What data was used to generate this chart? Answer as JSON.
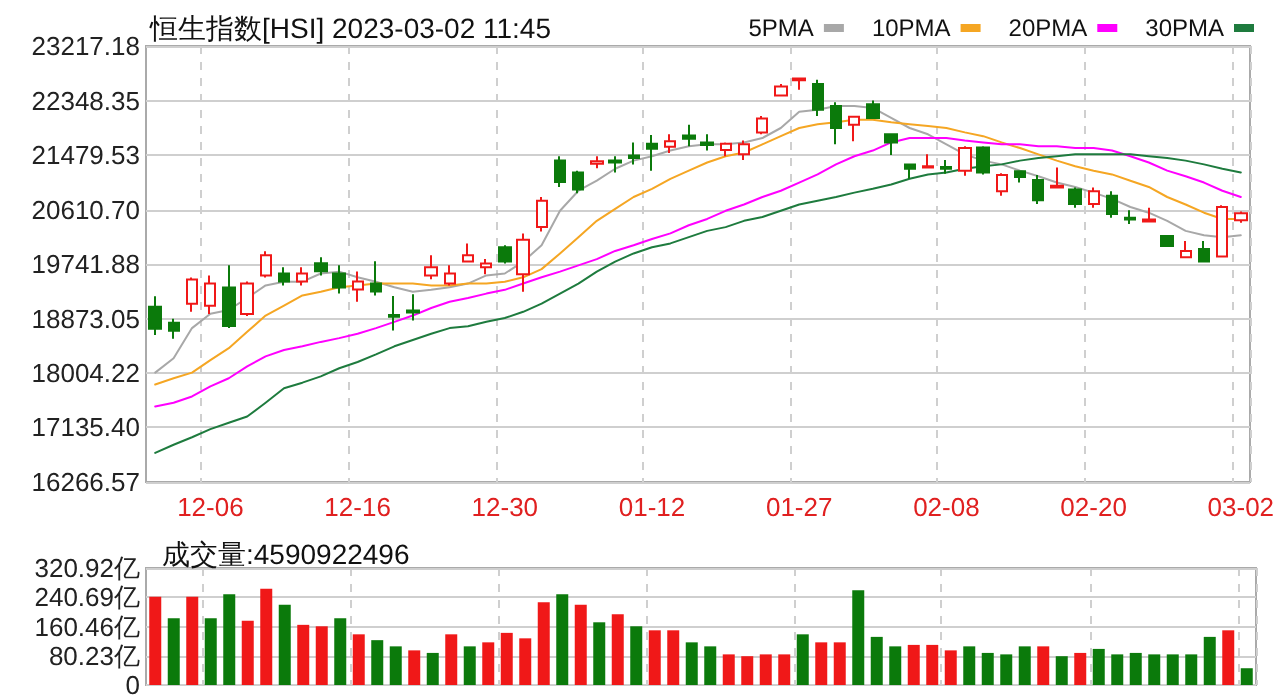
{
  "chart_data": [
    {
      "type": "candlestick",
      "title": "恒生指数[HSI] 2023-03-02 11:45",
      "categories": [
        null,
        null,
        null,
        "12-06",
        null,
        null,
        null,
        null,
        null,
        null,
        null,
        "12-16",
        null,
        null,
        null,
        null,
        null,
        null,
        null,
        "12-30",
        null,
        null,
        null,
        null,
        null,
        null,
        null,
        "01-12",
        null,
        null,
        null,
        null,
        null,
        null,
        null,
        "01-27",
        null,
        null,
        null,
        null,
        null,
        null,
        null,
        "02-08",
        null,
        null,
        null,
        null,
        null,
        null,
        null,
        "02-20",
        null,
        null,
        null,
        null,
        null,
        null,
        null,
        "03-02"
      ],
      "ohlc": [
        [
          19062,
          19228,
          18610,
          18708
        ],
        [
          18805,
          18870,
          18550,
          18676
        ],
        [
          19110,
          19528,
          18980,
          19496
        ],
        [
          19078,
          19560,
          18945,
          19432
        ],
        [
          19367,
          19721,
          18722,
          18755
        ],
        [
          18945,
          19464,
          18913,
          19432
        ],
        [
          19560,
          19946,
          19528,
          19882
        ],
        [
          19592,
          19689,
          19399,
          19464
        ],
        [
          19464,
          19689,
          19399,
          19592
        ],
        [
          19753,
          19850,
          19560,
          19625
        ],
        [
          19592,
          19721,
          19271,
          19367
        ],
        [
          19335,
          19624,
          19142,
          19464
        ],
        [
          19432,
          19785,
          19239,
          19303
        ],
        [
          18930,
          19230,
          18680,
          18900
        ],
        [
          19000,
          19260,
          18840,
          18970
        ],
        [
          19560,
          19880,
          19500,
          19690
        ],
        [
          19430,
          19720,
          19400,
          19590
        ],
        [
          19780,
          20070,
          19780,
          19880
        ],
        [
          19690,
          19820,
          19580,
          19750
        ],
        [
          20010,
          20040,
          19750,
          19780
        ],
        [
          19580,
          20230,
          19300,
          20130
        ],
        [
          20330,
          20810,
          20260,
          20750
        ],
        [
          21390,
          21460,
          20970,
          21050
        ],
        [
          21200,
          21230,
          20870,
          20930
        ],
        [
          21340,
          21460,
          21270,
          21380
        ],
        [
          21390,
          21460,
          21200,
          21360
        ],
        [
          21470,
          21680,
          21330,
          21430
        ],
        [
          21660,
          21800,
          21230,
          21580
        ],
        [
          21610,
          21810,
          21510,
          21700
        ],
        [
          21790,
          21960,
          21620,
          21740
        ],
        [
          21680,
          21810,
          21550,
          21640
        ],
        [
          21560,
          21680,
          21460,
          21660
        ],
        [
          21490,
          21710,
          21400,
          21650
        ],
        [
          21840,
          22100,
          21810,
          22060
        ],
        [
          22430,
          22610,
          22420,
          22570
        ],
        [
          22670,
          22700,
          22520,
          22700
        ],
        [
          22610,
          22680,
          22100,
          22200
        ],
        [
          22260,
          22320,
          21650,
          21910
        ],
        [
          21960,
          22090,
          21700,
          22090
        ],
        [
          22290,
          22350,
          22060,
          22070
        ],
        [
          21810,
          21810,
          21480,
          21680
        ],
        [
          21330,
          21340,
          21100,
          21260
        ],
        [
          21280,
          21490,
          21280,
          21300
        ],
        [
          21290,
          21400,
          21180,
          21260
        ],
        [
          21230,
          21620,
          21150,
          21590
        ],
        [
          21600,
          21620,
          21170,
          21200
        ],
        [
          20900,
          21190,
          20830,
          21160
        ],
        [
          21220,
          21230,
          21040,
          21130
        ],
        [
          21080,
          21160,
          20700,
          20760
        ],
        [
          20960,
          21280,
          20960,
          20990
        ],
        [
          20930,
          20960,
          20640,
          20700
        ],
        [
          20700,
          20960,
          20640,
          20900
        ],
        [
          20830,
          20900,
          20480,
          20540
        ],
        [
          20480,
          20600,
          20380,
          20450
        ],
        [
          20420,
          20640,
          20420,
          20450
        ],
        [
          20190,
          20190,
          20030,
          20030
        ],
        [
          19850,
          20110,
          19850,
          19950
        ],
        [
          19980,
          20110,
          19780,
          19780
        ],
        [
          19860,
          20680,
          19860,
          20650
        ],
        [
          20440,
          20580,
          20400,
          20550
        ]
      ],
      "colors": [
        "#0b7a0b",
        "#0b7a0b",
        "#f01818",
        "#f01818",
        "#0b7a0b",
        "#f01818",
        "#f01818",
        "#0b7a0b",
        "#f01818",
        "#0b7a0b",
        "#0b7a0b",
        "#f01818",
        "#0b7a0b",
        "#0b7a0b",
        "#0b7a0b",
        "#f01818",
        "#f01818",
        "#f01818",
        "#f01818",
        "#0b7a0b",
        "#f01818",
        "#f01818",
        "#0b7a0b",
        "#0b7a0b",
        "#f01818",
        "#0b7a0b",
        "#0b7a0b",
        "#0b7a0b",
        "#f01818",
        "#0b7a0b",
        "#0b7a0b",
        "#f01818",
        "#f01818",
        "#f01818",
        "#f01818",
        "#f01818",
        "#0b7a0b",
        "#0b7a0b",
        "#f01818",
        "#0b7a0b",
        "#0b7a0b",
        "#0b7a0b",
        "#f01818",
        "#0b7a0b",
        "#f01818",
        "#0b7a0b",
        "#f01818",
        "#0b7a0b",
        "#0b7a0b",
        "#f01818",
        "#0b7a0b",
        "#f01818",
        "#0b7a0b",
        "#0b7a0b",
        "#f01818",
        "#0b7a0b",
        "#f01818",
        "#0b7a0b",
        "#f01818",
        "#f01818"
      ],
      "series": [
        {
          "name": "5PMA",
          "type": "line",
          "color": "#a8a8a8",
          "values": [
            18010,
            18240,
            18720,
            18950,
            19010,
            19200,
            19400,
            19460,
            19460,
            19590,
            19620,
            19530,
            19460,
            19370,
            19300,
            19330,
            19370,
            19430,
            19560,
            19590,
            19780,
            20040,
            20590,
            20910,
            21070,
            21260,
            21390,
            21460,
            21550,
            21620,
            21650,
            21650,
            21680,
            21750,
            21910,
            22170,
            22200,
            22260,
            22260,
            22230,
            22070,
            21910,
            21810,
            21650,
            21490,
            21390,
            21330,
            21230,
            21140,
            21040,
            20970,
            20880,
            20780,
            20650,
            20560,
            20430,
            20270,
            20200,
            20170,
            20200
          ]
        },
        {
          "name": "10PMA",
          "type": "line",
          "color": "#f5a623",
          "values": [
            17820,
            17920,
            18010,
            18210,
            18400,
            18660,
            18920,
            19080,
            19240,
            19300,
            19370,
            19400,
            19430,
            19430,
            19430,
            19400,
            19400,
            19430,
            19430,
            19460,
            19530,
            19660,
            19910,
            20170,
            20430,
            20620,
            20810,
            20940,
            21100,
            21230,
            21360,
            21460,
            21520,
            21650,
            21780,
            21910,
            21970,
            22000,
            22040,
            22040,
            22000,
            21970,
            21940,
            21910,
            21840,
            21780,
            21680,
            21590,
            21490,
            21390,
            21300,
            21230,
            21170,
            21070,
            20970,
            20810,
            20690,
            20560,
            20460,
            20460
          ]
        },
        {
          "name": "20PMA",
          "type": "line",
          "color": "#ff00ff",
          "values": [
            17470,
            17530,
            17630,
            17790,
            17920,
            18110,
            18270,
            18370,
            18430,
            18500,
            18560,
            18630,
            18720,
            18820,
            18920,
            19040,
            19140,
            19200,
            19270,
            19330,
            19430,
            19530,
            19620,
            19720,
            19820,
            19950,
            20040,
            20140,
            20230,
            20360,
            20460,
            20590,
            20690,
            20810,
            20910,
            21040,
            21170,
            21330,
            21460,
            21550,
            21680,
            21750,
            21750,
            21750,
            21710,
            21680,
            21650,
            21650,
            21620,
            21620,
            21590,
            21590,
            21550,
            21460,
            21360,
            21230,
            21140,
            21040,
            20910,
            20810
          ]
        },
        {
          "name": "30PMA",
          "type": "line",
          "color": "#1e7b3e",
          "values": [
            16730,
            16860,
            16980,
            17110,
            17210,
            17310,
            17530,
            17760,
            17850,
            17950,
            18080,
            18180,
            18300,
            18430,
            18530,
            18630,
            18720,
            18750,
            18820,
            18880,
            18980,
            19110,
            19270,
            19430,
            19620,
            19780,
            19910,
            20010,
            20070,
            20170,
            20270,
            20330,
            20430,
            20490,
            20590,
            20690,
            20750,
            20810,
            20880,
            20940,
            21010,
            21100,
            21170,
            21200,
            21260,
            21300,
            21330,
            21390,
            21430,
            21460,
            21490,
            21490,
            21490,
            21490,
            21460,
            21430,
            21390,
            21330,
            21260,
            21200
          ]
        }
      ],
      "ylim": [
        16266.57,
        23217.18
      ],
      "yticks": [
        16266.57,
        {
          "value": 17135.4,
          "label": "17135.40"
        },
        18004.22,
        18873.05,
        19741.88,
        {
          "value": 20610.7,
          "label": "20610.70"
        },
        21479.53,
        22348.35,
        23217.18
      ],
      "grid": true,
      "legend": "top right",
      "marker": "none",
      "line_style": "solid"
    },
    {
      "type": "bar",
      "title": "成交量:4590922496",
      "categories": [
        null,
        null,
        null,
        null,
        null,
        null,
        null,
        null,
        null,
        null,
        null,
        null,
        null,
        null,
        null,
        null,
        null,
        null,
        null,
        null,
        null,
        null,
        null,
        null,
        null,
        null,
        null,
        null,
        null,
        null,
        null,
        null,
        null,
        null,
        null,
        null,
        null,
        null,
        null,
        null,
        null,
        null,
        null,
        null,
        null,
        null,
        null,
        null,
        null,
        null,
        null,
        null,
        null,
        null,
        null,
        null,
        null,
        null,
        null,
        null
      ],
      "values": [
        242,
        183,
        242,
        183,
        249,
        176,
        264,
        220,
        165,
        161,
        183,
        139,
        123,
        106,
        95,
        88,
        139,
        106,
        117,
        143,
        128,
        227,
        249,
        220,
        172,
        194,
        161,
        150,
        150,
        117,
        106,
        84,
        79,
        84,
        84,
        139,
        117,
        117,
        260,
        132,
        106,
        110,
        110,
        95,
        106,
        88,
        84,
        106,
        106,
        79,
        88,
        99,
        84,
        88,
        84,
        84,
        84,
        132,
        150,
        46
      ],
      "colors": [
        "#f01818",
        "#0b7a0b",
        "#f01818",
        "#0b7a0b",
        "#0b7a0b",
        "#f01818",
        "#f01818",
        "#0b7a0b",
        "#f01818",
        "#f01818",
        "#0b7a0b",
        "#f01818",
        "#0b7a0b",
        "#0b7a0b",
        "#f01818",
        "#0b7a0b",
        "#f01818",
        "#0b7a0b",
        "#f01818",
        "#f01818",
        "#f01818",
        "#f01818",
        "#0b7a0b",
        "#f01818",
        "#0b7a0b",
        "#f01818",
        "#0b7a0b",
        "#f01818",
        "#f01818",
        "#0b7a0b",
        "#0b7a0b",
        "#f01818",
        "#f01818",
        "#f01818",
        "#f01818",
        "#0b7a0b",
        "#f01818",
        "#f01818",
        "#0b7a0b",
        "#0b7a0b",
        "#0b7a0b",
        "#f01818",
        "#f01818",
        "#f01818",
        "#0b7a0b",
        "#0b7a0b",
        "#0b7a0b",
        "#0b7a0b",
        "#f01818",
        "#0b7a0b",
        "#f01818",
        "#0b7a0b",
        "#0b7a0b",
        "#0b7a0b",
        "#0b7a0b",
        "#0b7a0b",
        "#0b7a0b",
        "#0b7a0b",
        "#f01818",
        "#0b7a0b"
      ],
      "ylim": [
        0,
        320.92
      ],
      "yticks": [
        0,
        {
          "value": 80.23,
          "label": "80.23亿"
        },
        {
          "value": 160.46,
          "label": "160.46亿"
        },
        {
          "value": 240.69,
          "label": "240.69亿"
        },
        {
          "value": 320.92,
          "label": "320.92亿"
        }
      ],
      "grid": true
    }
  ]
}
